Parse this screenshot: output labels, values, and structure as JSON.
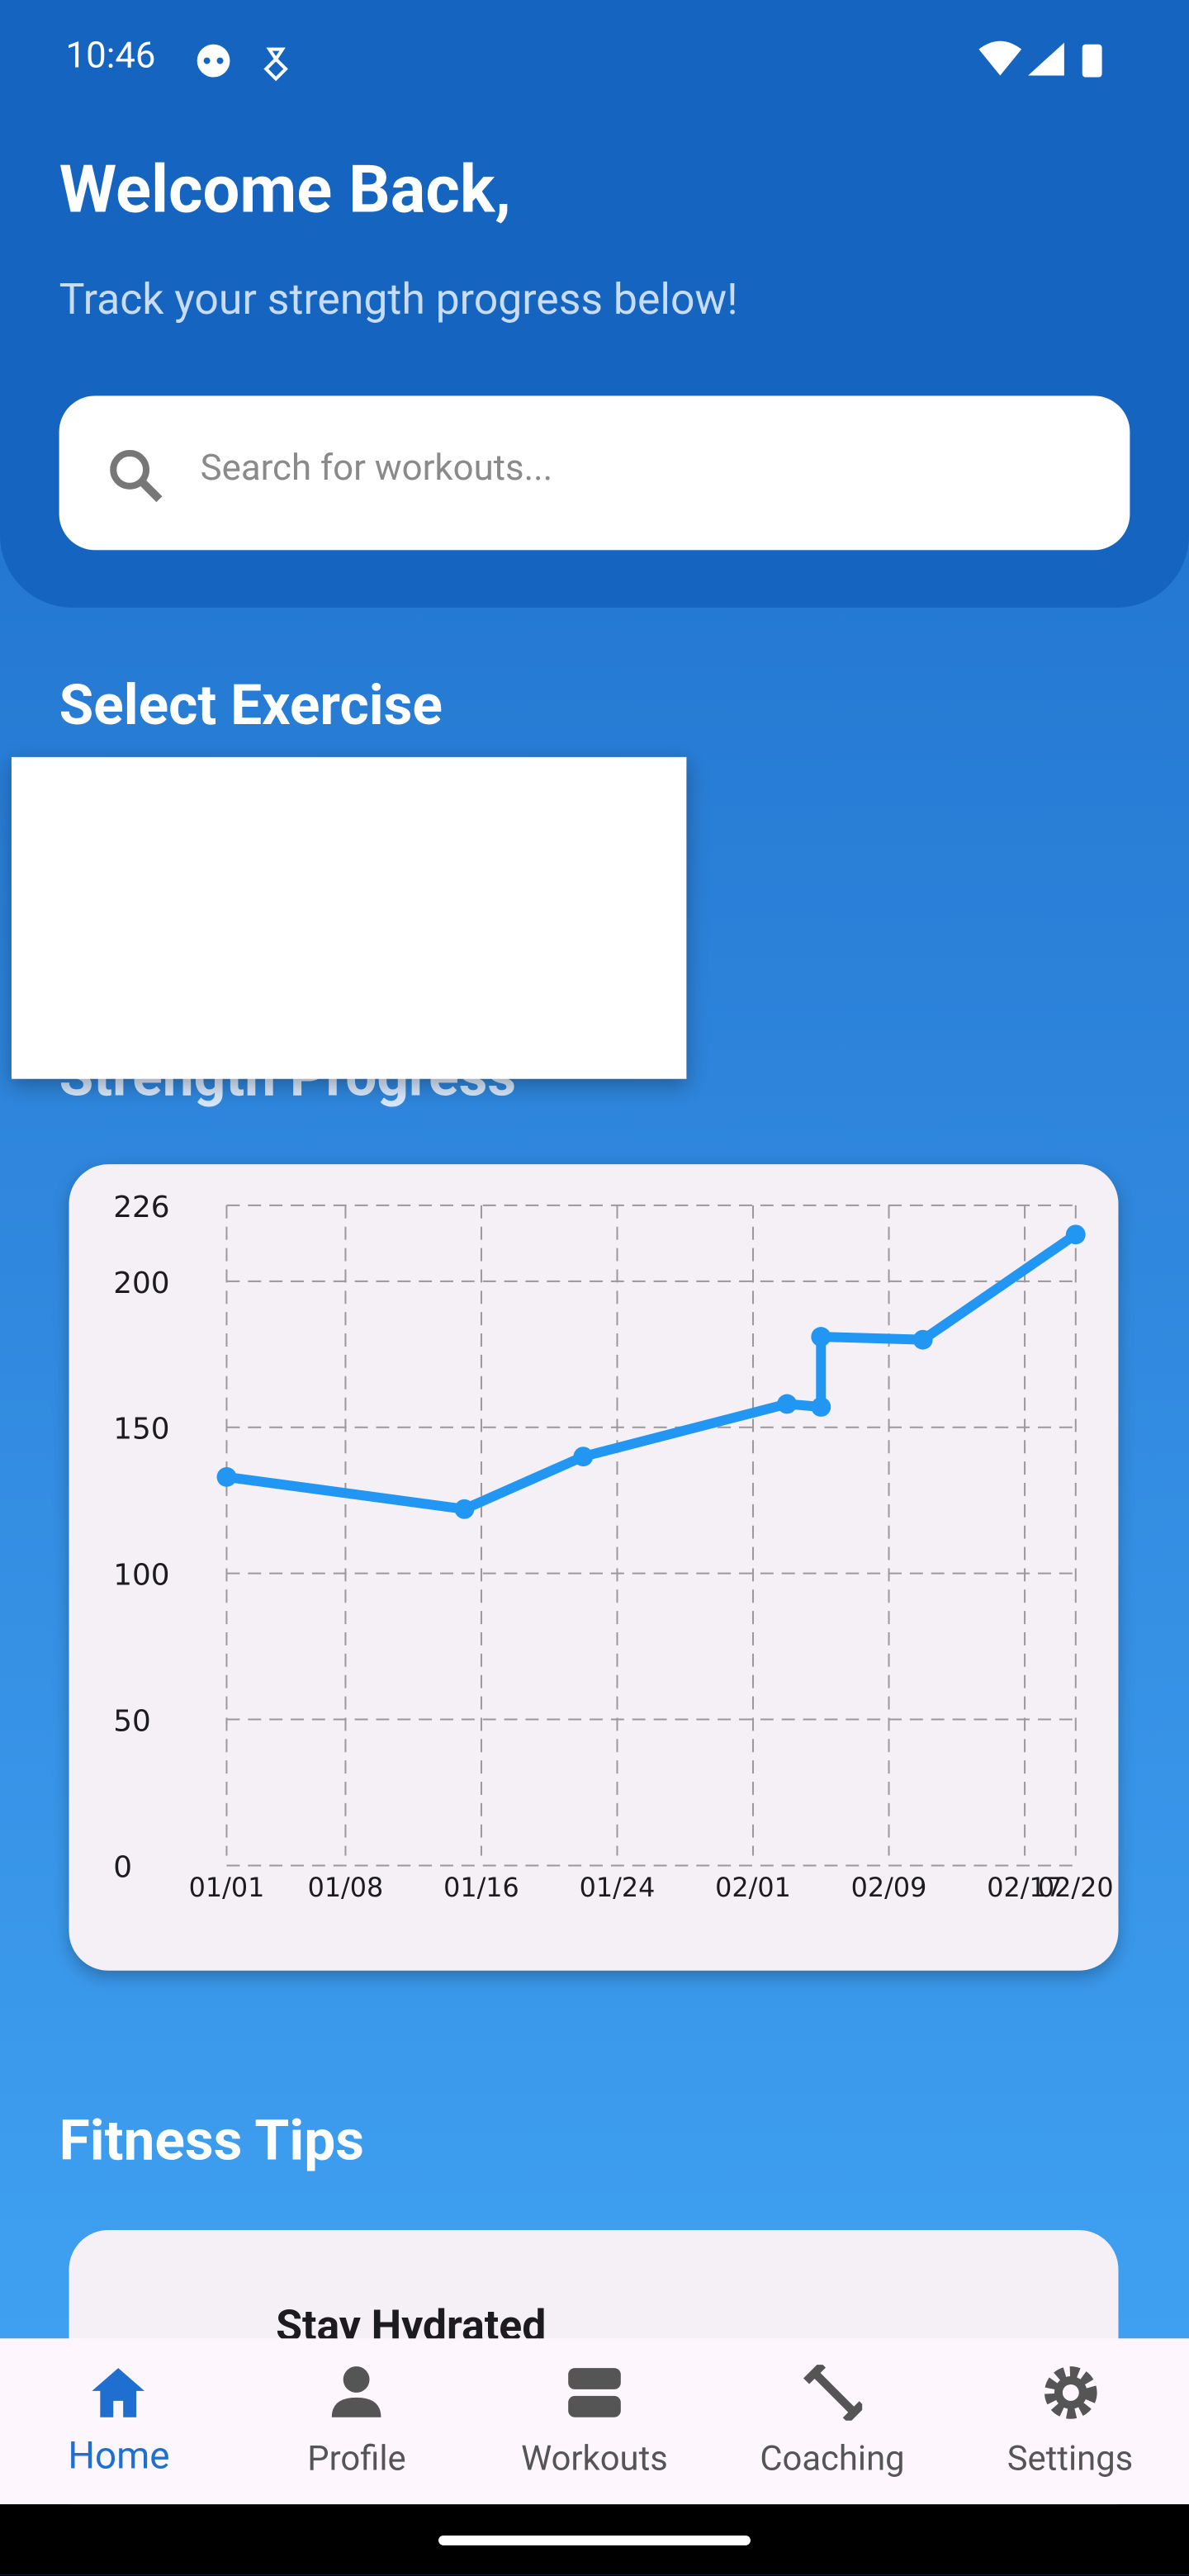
{
  "status_bar": {
    "time": "10:46"
  },
  "header": {
    "title": "Welcome Back,",
    "subtitle": "Track your strength progress below!",
    "search_placeholder": "Search for workouts..."
  },
  "sections": {
    "select_exercise": "Select Exercise",
    "strength_progress": "Strength Progress",
    "fitness_tips": "Fitness Tips"
  },
  "tips": [
    {
      "title": "Stay Hydrated"
    }
  ],
  "nav": [
    {
      "label": "Home"
    },
    {
      "label": "Profile"
    },
    {
      "label": "Workouts"
    },
    {
      "label": "Coaching"
    },
    {
      "label": "Settings"
    }
  ],
  "chart_data": {
    "type": "line",
    "x": [
      "01/01",
      "01/15",
      "01/22",
      "02/03",
      "02/05",
      "02/05",
      "02/11",
      "02/20"
    ],
    "values": [
      133,
      122,
      140,
      158,
      157,
      181,
      180,
      216
    ],
    "color": "#2196f3",
    "xlim": [
      "01/01",
      "02/20"
    ],
    "xticks": [
      "01/01",
      "01/08",
      "01/16",
      "01/24",
      "02/01",
      "02/09",
      "02/17",
      "02/20"
    ],
    "ylim": [
      0,
      226
    ],
    "yticks": [
      0,
      50,
      100,
      150,
      200,
      226
    ],
    "grid": true
  }
}
